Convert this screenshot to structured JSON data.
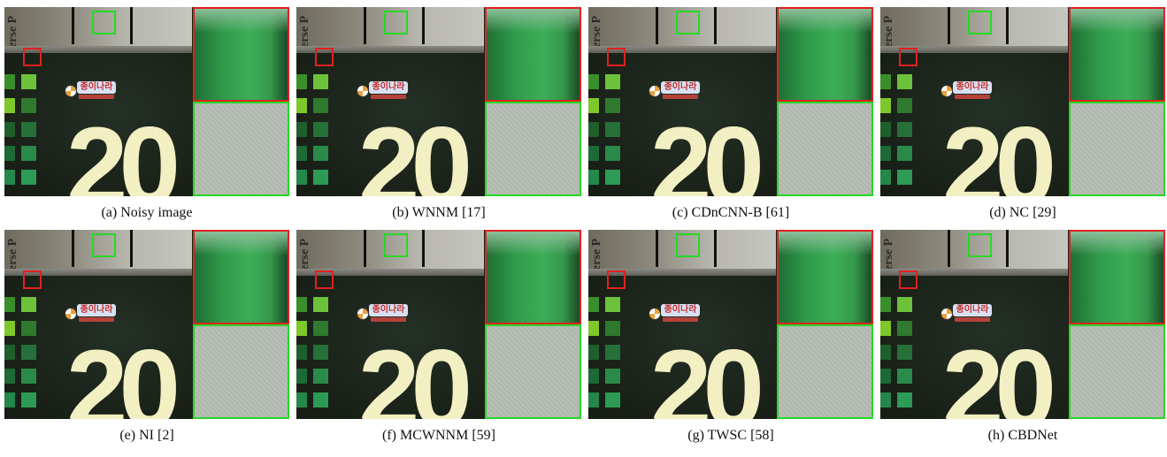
{
  "figure": {
    "panels": [
      {
        "caption": "(a) Noisy image"
      },
      {
        "caption": "(b) WNNM [17]"
      },
      {
        "caption": "(c) CDnCNN-B [61]"
      },
      {
        "caption": "(d) NC [29]"
      },
      {
        "caption": "(e) NI [2]"
      },
      {
        "caption": "(f) MCWNNM [59]"
      },
      {
        "caption": "(g) TWSC [58]"
      },
      {
        "caption": "(h) CBDNet"
      }
    ],
    "scene": {
      "sign_text": "erse P",
      "logo_text": "종이나라",
      "big_text": "20"
    },
    "colors": {
      "highlight_red": "#e32020",
      "highlight_green": "#25d925"
    }
  }
}
